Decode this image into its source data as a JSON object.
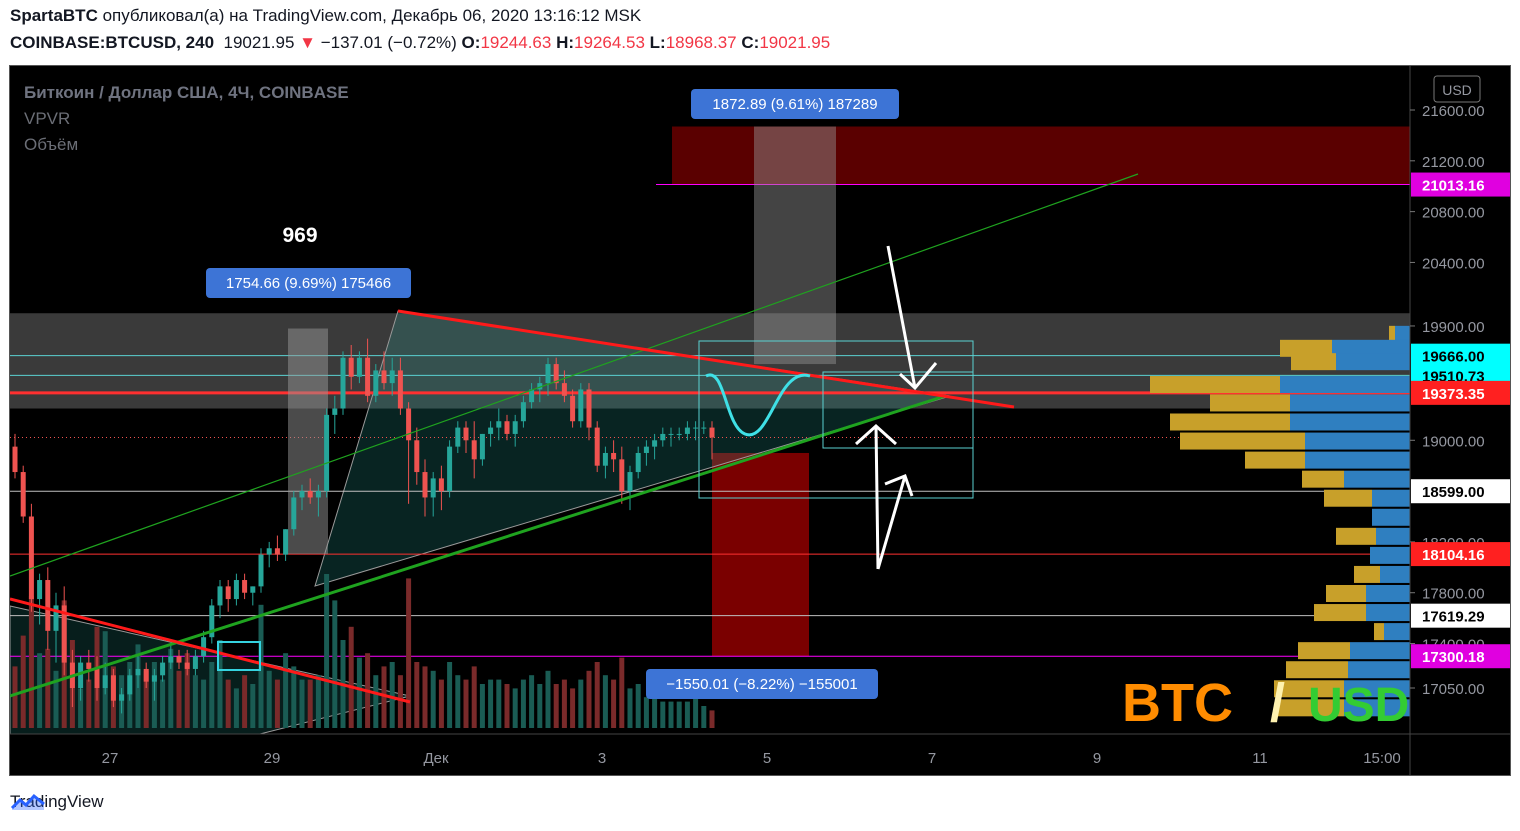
{
  "header": {
    "author": "SpartaBTC",
    "published_text": " опубликовал(а) на TradingView.com, Декабрь 06, 2020 13:16:12 MSK",
    "symbol": "COINBASE:BTCUSD, 240",
    "last": "19021.95",
    "arrow": "▼",
    "change": "−137.01 (−0.72%)",
    "o_label": "O:",
    "o": "19244.63",
    "h_label": "H:",
    "h": "19264.53",
    "l_label": "L:",
    "l": "18968.37",
    "c_label": "C:",
    "c": "19021.95"
  },
  "legend": {
    "title": "Биткоин / Доллар США, 4Ч, COINBASE",
    "vpvr": "VPVR",
    "volume": "Объём"
  },
  "currency_button": "USD",
  "footer": {
    "brand": "TradingView",
    "brand_icon": "tradingview-logo-icon"
  },
  "colors": {
    "up": "#26a69a",
    "down": "#ef5350",
    "vol_up": "#1a5c54",
    "vol_down": "#7a2a2a",
    "trend_red": "#ff1a1a",
    "trend_green": "#1fa31f",
    "magenta": "#ff00ff",
    "profile_gold": "#c8a02a",
    "profile_blue": "#2f7fc0",
    "measure_blue": "#3d74d6"
  },
  "annotations": {
    "label_969": "969",
    "measure_up_1": "1754.66 (9.69%) 175466",
    "measure_up_2": "1872.89 (9.61%) 187289",
    "measure_down": "−1550.01 (−8.22%) −155001",
    "btc": "BTC",
    "slash": "/",
    "usd": "USD"
  },
  "chart_data": {
    "type": "candlestick",
    "title": "Биткоин / Доллар США, 4Ч, COINBASE",
    "x_ticks": [
      "27",
      "29",
      "Дек",
      "3",
      "5",
      "7",
      "9",
      "11",
      "15:00"
    ],
    "y_ticks": [
      17050,
      17400,
      17800,
      18200,
      18599,
      19000,
      19510.73,
      19666,
      19900,
      20400,
      20800,
      21200,
      21600
    ],
    "price_labels": [
      {
        "value": 21013.16,
        "text": "21013.16",
        "style": "magenta"
      },
      {
        "value": 19666.0,
        "text": "19666.00",
        "style": "cyan"
      },
      {
        "value": 19510.73,
        "text": "19510.73",
        "style": "cyan"
      },
      {
        "value": 19373.35,
        "text": "19373.35",
        "style": "red"
      },
      {
        "value": 18599.0,
        "text": "18599.00",
        "style": "white"
      },
      {
        "value": 18104.16,
        "text": "18104.16",
        "style": "red"
      },
      {
        "value": 17619.29,
        "text": "17619.29",
        "style": "white"
      },
      {
        "value": 17300.18,
        "text": "17300.18",
        "style": "magenta"
      }
    ],
    "ylim": [
      16800,
      21850
    ],
    "candles": [
      [
        18950,
        19050,
        18700,
        18750
      ],
      [
        18750,
        18800,
        18350,
        18400
      ],
      [
        18400,
        18500,
        17650,
        17750
      ],
      [
        17750,
        17950,
        17550,
        17900
      ],
      [
        17900,
        18000,
        17350,
        17500
      ],
      [
        17500,
        17800,
        17250,
        17700
      ],
      [
        17700,
        17850,
        17150,
        17250
      ],
      [
        17250,
        17350,
        16900,
        17050
      ],
      [
        17050,
        17300,
        16950,
        17250
      ],
      [
        17250,
        17350,
        17100,
        17200
      ],
      [
        17200,
        17300,
        16950,
        17050
      ],
      [
        17050,
        17250,
        17000,
        17150
      ],
      [
        17150,
        17200,
        16900,
        16950
      ],
      [
        16950,
        17050,
        16850,
        17000
      ],
      [
        17000,
        17200,
        16950,
        17150
      ],
      [
        17150,
        17300,
        17050,
        17200
      ],
      [
        17200,
        17250,
        17050,
        17100
      ],
      [
        17100,
        17200,
        16950,
        17150
      ],
      [
        17150,
        17300,
        17100,
        17250
      ],
      [
        17250,
        17400,
        17200,
        17300
      ],
      [
        17300,
        17350,
        17200,
        17250
      ],
      [
        17250,
        17350,
        17150,
        17200
      ],
      [
        17200,
        17350,
        17150,
        17300
      ],
      [
        17300,
        17500,
        17250,
        17450
      ],
      [
        17450,
        17750,
        17400,
        17700
      ],
      [
        17700,
        17900,
        17600,
        17850
      ],
      [
        17850,
        17900,
        17650,
        17750
      ],
      [
        17750,
        17950,
        17700,
        17900
      ],
      [
        17900,
        17950,
        17750,
        17800
      ],
      [
        17800,
        17850,
        17700,
        17850
      ],
      [
        17850,
        18150,
        17800,
        18100
      ],
      [
        18100,
        18200,
        18000,
        18150
      ],
      [
        18150,
        18250,
        18050,
        18100
      ],
      [
        18100,
        18300,
        18050,
        18300
      ],
      [
        18300,
        18600,
        18250,
        18550
      ],
      [
        18550,
        18650,
        18450,
        18600
      ],
      [
        18600,
        18700,
        18500,
        18550
      ],
      [
        18550,
        18650,
        18400,
        18600
      ],
      [
        18600,
        19250,
        18550,
        19200
      ],
      [
        19200,
        19350,
        19050,
        19250
      ],
      [
        19250,
        19700,
        19200,
        19650
      ],
      [
        19650,
        19750,
        19400,
        19500
      ],
      [
        19500,
        19700,
        19450,
        19650
      ],
      [
        19650,
        19800,
        19300,
        19350
      ],
      [
        19350,
        19600,
        19300,
        19550
      ],
      [
        19550,
        19700,
        19400,
        19450
      ],
      [
        19450,
        19650,
        19350,
        19550
      ],
      [
        19550,
        19650,
        19200,
        19250
      ],
      [
        19250,
        19300,
        18500,
        19000
      ],
      [
        19000,
        19100,
        18650,
        18750
      ],
      [
        18750,
        18850,
        18400,
        18550
      ],
      [
        18550,
        18750,
        18400,
        18700
      ],
      [
        18700,
        18800,
        18450,
        18600
      ],
      [
        18600,
        19000,
        18550,
        18950
      ],
      [
        18950,
        19150,
        18900,
        19100
      ],
      [
        19100,
        19150,
        18900,
        19000
      ],
      [
        19000,
        19150,
        18700,
        18850
      ],
      [
        18850,
        19050,
        18800,
        19050
      ],
      [
        19050,
        19150,
        18950,
        19100
      ],
      [
        19100,
        19250,
        19000,
        19150
      ],
      [
        19150,
        19200,
        19000,
        19050
      ],
      [
        19050,
        19200,
        18950,
        19150
      ],
      [
        19150,
        19350,
        19100,
        19300
      ],
      [
        19300,
        19450,
        19250,
        19400
      ],
      [
        19400,
        19500,
        19300,
        19450
      ],
      [
        19450,
        19650,
        19350,
        19600
      ],
      [
        19600,
        19650,
        19400,
        19450
      ],
      [
        19450,
        19550,
        19300,
        19350
      ],
      [
        19350,
        19400,
        19100,
        19150
      ],
      [
        19150,
        19450,
        19100,
        19400
      ],
      [
        19400,
        19450,
        19000,
        19100
      ],
      [
        19100,
        19150,
        18750,
        18800
      ],
      [
        18800,
        18950,
        18700,
        18900
      ],
      [
        18900,
        19000,
        18750,
        18850
      ],
      [
        18850,
        18950,
        18500,
        18600
      ],
      [
        18600,
        18800,
        18450,
        18750
      ],
      [
        18750,
        18950,
        18700,
        18900
      ],
      [
        18900,
        19000,
        18800,
        18950
      ],
      [
        18950,
        19050,
        18850,
        19000
      ],
      [
        19000,
        19100,
        18950,
        19050
      ],
      [
        19050,
        19100,
        18950,
        19050
      ],
      [
        19050,
        19100,
        19000,
        19050
      ],
      [
        19050,
        19150,
        19000,
        19100
      ],
      [
        19100,
        19150,
        19000,
        19100
      ],
      [
        19100,
        19150,
        19050,
        19100
      ],
      [
        19100,
        19150,
        18850,
        19022
      ]
    ],
    "volumes": [
      28,
      42,
      60,
      34,
      36,
      26,
      58,
      40,
      18,
      22,
      46,
      44,
      28,
      24,
      30,
      38,
      26,
      30,
      22,
      36,
      26,
      34,
      24,
      22,
      30,
      40,
      22,
      18,
      24,
      20,
      56,
      26,
      22,
      34,
      28,
      22,
      22,
      24,
      70,
      58,
      40,
      46,
      32,
      34,
      24,
      28,
      30,
      24,
      68,
      30,
      28,
      26,
      22,
      30,
      24,
      22,
      28,
      20,
      22,
      22,
      20,
      18,
      22,
      24,
      20,
      26,
      20,
      22,
      18,
      22,
      26,
      30,
      24,
      22,
      32,
      18,
      20,
      14,
      14,
      12,
      12,
      12,
      12,
      16,
      10,
      8
    ],
    "volume_profile": [
      {
        "price": 19830,
        "buy": 6,
        "sell": 15
      },
      {
        "price": 19720,
        "buy": 52,
        "sell": 78
      },
      {
        "price": 19615,
        "buy": 45,
        "sell": 74
      },
      {
        "price": 19435,
        "buy": 130,
        "sell": 130
      },
      {
        "price": 19290,
        "buy": 80,
        "sell": 120
      },
      {
        "price": 19140,
        "buy": 120,
        "sell": 120
      },
      {
        "price": 18990,
        "buy": 125,
        "sell": 105
      },
      {
        "price": 18840,
        "buy": 60,
        "sell": 105
      },
      {
        "price": 18690,
        "buy": 42,
        "sell": 66
      },
      {
        "price": 18540,
        "buy": 48,
        "sell": 38
      },
      {
        "price": 18390,
        "buy": 0,
        "sell": 38
      },
      {
        "price": 18240,
        "buy": 40,
        "sell": 34
      },
      {
        "price": 18090,
        "buy": 0,
        "sell": 40
      },
      {
        "price": 17940,
        "buy": 26,
        "sell": 30
      },
      {
        "price": 17790,
        "buy": 40,
        "sell": 44
      },
      {
        "price": 17640,
        "buy": 52,
        "sell": 44
      },
      {
        "price": 17490,
        "buy": 10,
        "sell": 26
      },
      {
        "price": 17340,
        "buy": 52,
        "sell": 60
      },
      {
        "price": 17190,
        "buy": 62,
        "sell": 62
      },
      {
        "price": 17040,
        "buy": 70,
        "sell": 66
      },
      {
        "price": 16890,
        "buy": 66,
        "sell": 66
      }
    ],
    "zones": [
      {
        "kind": "target",
        "from": 21013,
        "to": 21470
      },
      {
        "kind": "resistance",
        "from": 19250,
        "to": 20000
      },
      {
        "kind": "drop",
        "from": 17300,
        "to": 18900
      }
    ]
  }
}
